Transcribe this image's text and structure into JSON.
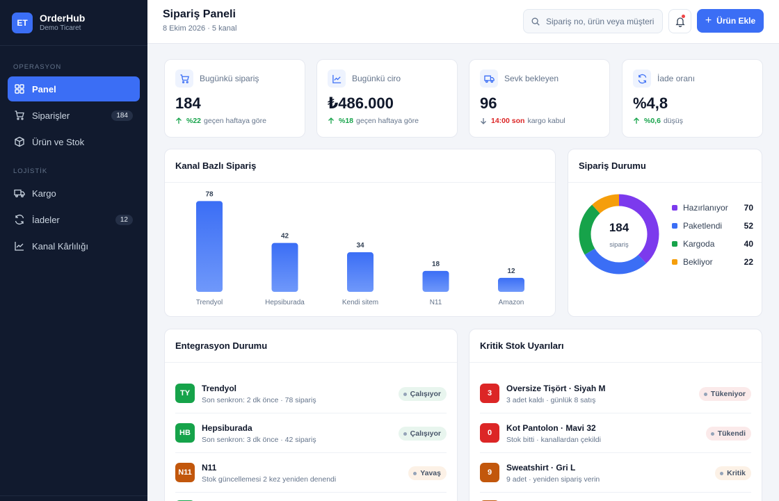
{
  "brand": {
    "initials": "ET",
    "name": "OrderHub",
    "subtitle": "Demo Ticaret"
  },
  "sidebar": {
    "sections": [
      "OPERASYON",
      "LOJİSTİK"
    ],
    "items": [
      {
        "label": "Panel",
        "icon": "grid-icon"
      },
      {
        "label": "Siparişler",
        "icon": "cart-icon",
        "badge": "184"
      },
      {
        "label": "Ürün ve Stok",
        "icon": "box-icon"
      },
      {
        "label": "Kargo",
        "icon": "truck-icon"
      },
      {
        "label": "İadeler",
        "icon": "refresh-icon",
        "badge": "12"
      },
      {
        "label": "Kanal Kârlılığı",
        "icon": "chart-line-icon"
      }
    ]
  },
  "header": {
    "title": "Sipariş Paneli",
    "subtitle": "8 Ekim 2026 · 5 kanal",
    "search_placeholder": "Sipariş no, ürün veya müşteri ara",
    "add_label": "Ürün Ekle"
  },
  "kpis": [
    {
      "label": "Bugünkü sipariş",
      "value": "184",
      "delta": "%22",
      "note": "geçen haftaya göre"
    },
    {
      "label": "Bugünkü ciro",
      "value": "₺486.000",
      "delta": "%18",
      "note": "geçen haftaya göre"
    },
    {
      "label": "Sevk bekleyen",
      "value": "96",
      "delta": "14:00 son",
      "note": "kargo kabul"
    },
    {
      "label": "İade oranı",
      "value": "%4,8",
      "delta": "%0,6",
      "note": "düşüş"
    }
  ],
  "channel_chart": {
    "title": "Kanal Bazlı Sipariş",
    "chart_data": {
      "type": "bar",
      "categories": [
        "Trendyol",
        "Hepsiburada",
        "Kendi sitem",
        "N11",
        "Amazon"
      ],
      "values": [
        78,
        42,
        34,
        18,
        12
      ]
    }
  },
  "status_chart": {
    "title": "Sipariş Durumu",
    "center_value": "184",
    "center_label": "sipariş",
    "chart_data": {
      "type": "pie",
      "categories": [
        "Hazırlanıyor",
        "Paketlendi",
        "Kargoda",
        "Bekliyor"
      ],
      "values": [
        70,
        52,
        40,
        22
      ],
      "colors": [
        "#7c3aed",
        "#3b6ef5",
        "#16a34a",
        "#f59e0b"
      ]
    }
  },
  "integrations": {
    "title": "Entegrasyon Durumu",
    "rows": [
      {
        "initials": "TY",
        "name": "Trendyol",
        "detail": "Son senkron: 2 dk önce · 78 sipariş",
        "status": "Çalışıyor",
        "tone": "green"
      },
      {
        "initials": "HB",
        "name": "Hepsiburada",
        "detail": "Son senkron: 3 dk önce · 42 sipariş",
        "status": "Çalışıyor",
        "tone": "green"
      },
      {
        "initials": "N11",
        "name": "N11",
        "detail": "Stok güncellemesi 2 kez yeniden denendi",
        "status": "Yavaş",
        "tone": "orange"
      }
    ]
  },
  "stock_alerts": {
    "title": "Kritik Stok Uyarıları",
    "rows": [
      {
        "qty": "3",
        "name": "Oversize Tişört · Siyah M",
        "detail": "3 adet kaldı · günlük 8 satış",
        "status": "Tükeniyor",
        "tone": "red"
      },
      {
        "qty": "0",
        "name": "Kot Pantolon · Mavi 32",
        "detail": "Stok bitti · kanallardan çekildi",
        "status": "Tükendi",
        "tone": "red"
      },
      {
        "qty": "9",
        "name": "Sweatshirt · Gri L",
        "detail": "9 adet · yeniden sipariş verin",
        "status": "Kritik",
        "tone": "orange"
      }
    ]
  }
}
